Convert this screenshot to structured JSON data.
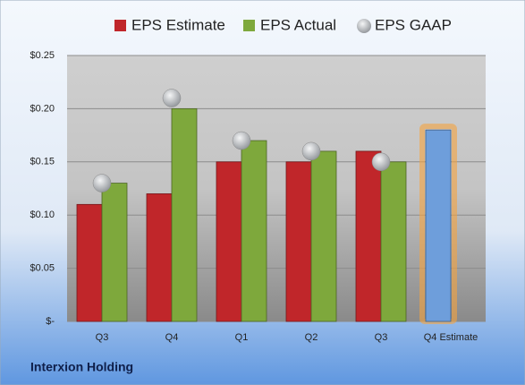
{
  "chart_data": {
    "type": "bar",
    "title": "Interxion Holding",
    "categories": [
      "Q3",
      "Q4",
      "Q1",
      "Q2",
      "Q3",
      "Q4 Estimate"
    ],
    "series": [
      {
        "name": "EPS Estimate",
        "color": "#c0262a",
        "values": [
          0.11,
          0.12,
          0.15,
          0.15,
          0.16,
          0.18
        ]
      },
      {
        "name": "EPS Actual",
        "color": "#7ea83c",
        "values": [
          0.13,
          0.2,
          0.17,
          0.16,
          0.15,
          null
        ]
      },
      {
        "name": "EPS GAAP",
        "color": "#b4b8bc",
        "values": [
          0.13,
          0.21,
          0.17,
          0.16,
          0.15,
          null
        ]
      }
    ],
    "estimate_color": "#6e9edb",
    "estimate_glow": "#f5a340",
    "ylim": [
      0,
      0.25
    ],
    "yticks": [
      {
        "value": 0,
        "label": "$-"
      },
      {
        "value": 0.05,
        "label": "$0.05"
      },
      {
        "value": 0.1,
        "label": "$0.10"
      },
      {
        "value": 0.15,
        "label": "$0.15"
      },
      {
        "value": 0.2,
        "label": "$0.20"
      },
      {
        "value": 0.25,
        "label": "$0.25"
      }
    ],
    "grid": true
  }
}
